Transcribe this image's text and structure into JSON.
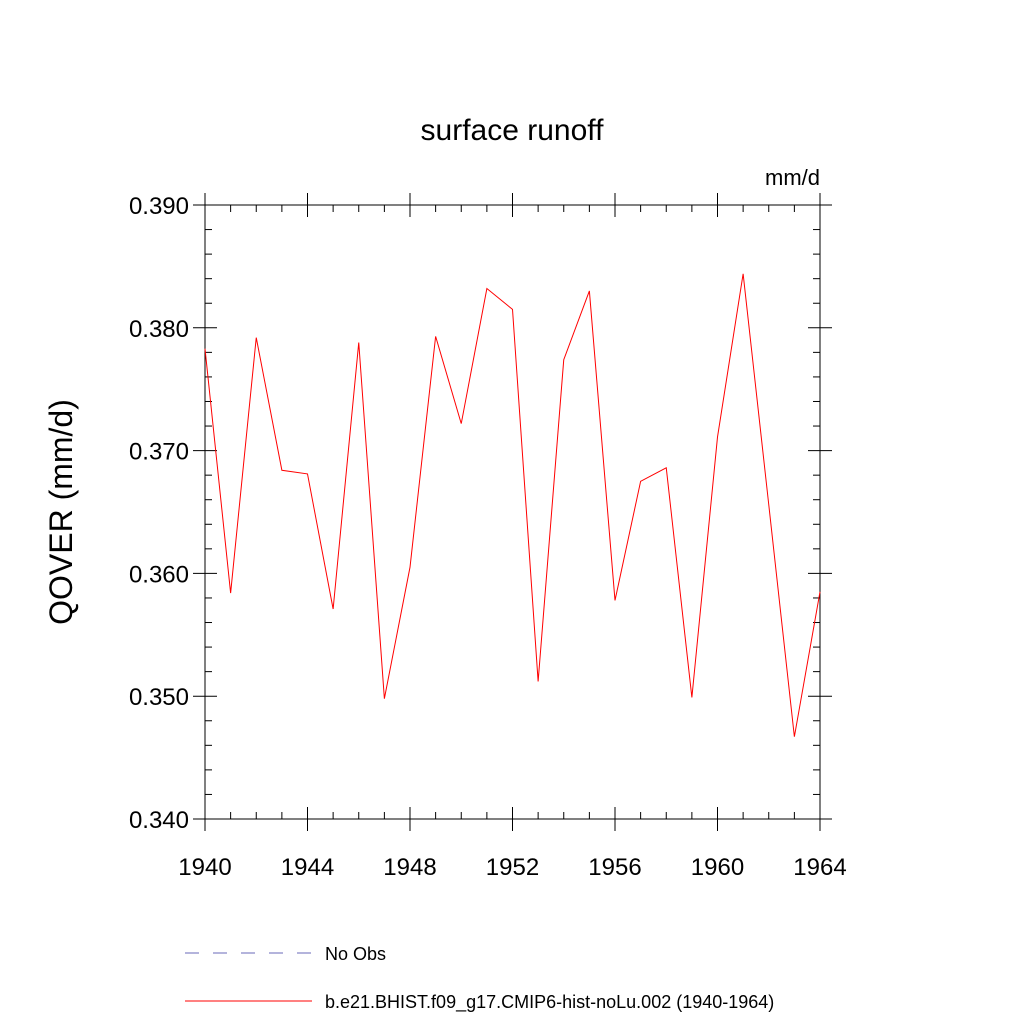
{
  "chart_data": {
    "type": "line",
    "title": "surface runoff",
    "units": "mm/d",
    "y_label": "QOVER  (mm/d)",
    "x": [
      1940,
      1941,
      1942,
      1943,
      1944,
      1945,
      1946,
      1947,
      1948,
      1949,
      1950,
      1951,
      1952,
      1953,
      1954,
      1955,
      1956,
      1957,
      1958,
      1959,
      1960,
      1961,
      1962,
      1963,
      1964
    ],
    "series": [
      {
        "name": "No Obs",
        "color": "#6a6ab8",
        "dash": true,
        "values": [
          null,
          null,
          null,
          null,
          null,
          null,
          null,
          null,
          null,
          null,
          null,
          null,
          null,
          null,
          null,
          null,
          null,
          null,
          null,
          null,
          null,
          null,
          null,
          null,
          null
        ]
      },
      {
        "name": "b.e21.BHIST.f09_g17.CMIP6-hist-noLu.002 (1940-1964)",
        "color": "#ff0000",
        "dash": false,
        "values": [
          0.3783,
          0.3584,
          0.3792,
          0.3684,
          0.3681,
          0.3571,
          0.3788,
          0.3498,
          0.3605,
          0.3793,
          0.3722,
          0.3832,
          0.3815,
          0.3512,
          0.3774,
          0.383,
          0.3578,
          0.3675,
          0.3686,
          0.3499,
          0.3711,
          0.3844,
          0.3656,
          0.3467,
          0.3585
        ]
      }
    ],
    "xlim": [
      1940,
      1964
    ],
    "xticks": [
      1940,
      1944,
      1948,
      1952,
      1956,
      1960,
      1964
    ],
    "ylim": [
      0.34,
      0.39
    ],
    "yticks": [
      {
        "value": 0.34,
        "label": "0.340"
      },
      {
        "value": 0.35,
        "label": "0.350"
      },
      {
        "value": 0.36,
        "label": "0.360"
      },
      {
        "value": 0.37,
        "label": "0.370"
      },
      {
        "value": 0.38,
        "label": "0.380"
      },
      {
        "value": 0.39,
        "label": "0.390"
      }
    ],
    "grid": false
  }
}
